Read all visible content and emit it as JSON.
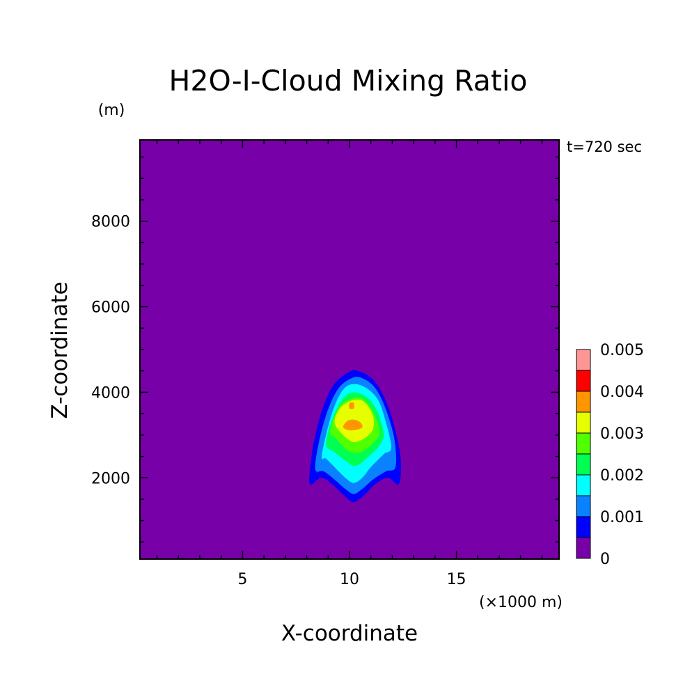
{
  "chart_data": {
    "type": "heatmap",
    "title": "H2O-I-Cloud Mixing Ratio",
    "xlabel": "X-coordinate",
    "ylabel": "Z-coordinate",
    "x_unit": "(×1000 m)",
    "y_unit": "(m)",
    "time_label": "t=720 sec",
    "xlim": [
      0.2,
      19.8
    ],
    "ylim": [
      100,
      9900
    ],
    "x_ticks": [
      5,
      10,
      15
    ],
    "y_ticks": [
      2000,
      4000,
      6000,
      8000
    ],
    "colorbar": {
      "levels": [
        0,
        0.0005,
        0.001,
        0.0015,
        0.002,
        0.0025,
        0.003,
        0.0035,
        0.004,
        0.0045,
        0.005
      ],
      "colors": [
        "#7800a8",
        "#0000ff",
        "#0a82ff",
        "#00ffff",
        "#00ff50",
        "#50ff00",
        "#e6ff00",
        "#ff9600",
        "#ff0000",
        "#ff9696"
      ],
      "tick_labels": [
        "0",
        "0.001",
        "0.002",
        "0.003",
        "0.004",
        "0.005"
      ],
      "tick_values": [
        0,
        0.001,
        0.002,
        0.003,
        0.004,
        0.005
      ]
    },
    "contours": [
      {
        "level": 0.0005,
        "color": "#0000ff",
        "points": [
          [
            8.15,
            1850
          ],
          [
            8.2,
            2400
          ],
          [
            8.4,
            3000
          ],
          [
            8.8,
            3700
          ],
          [
            9.3,
            4200
          ],
          [
            10.0,
            4480
          ],
          [
            10.4,
            4500
          ],
          [
            11.1,
            4300
          ],
          [
            11.7,
            3800
          ],
          [
            12.15,
            3100
          ],
          [
            12.4,
            2400
          ],
          [
            12.3,
            1850
          ],
          [
            11.8,
            2000
          ],
          [
            11.2,
            1850
          ],
          [
            10.7,
            1600
          ],
          [
            10.2,
            1430
          ],
          [
            9.8,
            1560
          ],
          [
            9.3,
            1800
          ],
          [
            8.7,
            2000
          ]
        ]
      },
      {
        "level": 0.001,
        "color": "#0a82ff",
        "points": [
          [
            8.4,
            2200
          ],
          [
            8.6,
            2900
          ],
          [
            9.0,
            3600
          ],
          [
            9.5,
            4100
          ],
          [
            10.1,
            4330
          ],
          [
            10.6,
            4330
          ],
          [
            11.2,
            4100
          ],
          [
            11.7,
            3600
          ],
          [
            12.1,
            2900
          ],
          [
            12.15,
            2250
          ],
          [
            11.7,
            2150
          ],
          [
            11.1,
            1960
          ],
          [
            10.6,
            1740
          ],
          [
            10.2,
            1620
          ],
          [
            9.8,
            1740
          ],
          [
            9.3,
            1960
          ],
          [
            8.8,
            2150
          ]
        ]
      },
      {
        "level": 0.0015,
        "color": "#00ffff",
        "points": [
          [
            8.7,
            2500
          ],
          [
            9.0,
            3200
          ],
          [
            9.4,
            3800
          ],
          [
            9.9,
            4150
          ],
          [
            10.6,
            4150
          ],
          [
            11.3,
            3850
          ],
          [
            11.7,
            3300
          ],
          [
            11.95,
            2700
          ],
          [
            11.6,
            2550
          ],
          [
            11.0,
            2250
          ],
          [
            10.6,
            2000
          ],
          [
            10.2,
            1880
          ],
          [
            9.8,
            2000
          ],
          [
            9.3,
            2250
          ],
          [
            8.9,
            2450
          ]
        ]
      },
      {
        "level": 0.002,
        "color": "#00ff50",
        "points": [
          [
            8.9,
            2800
          ],
          [
            9.3,
            3500
          ],
          [
            9.9,
            3950
          ],
          [
            10.6,
            3950
          ],
          [
            11.2,
            3650
          ],
          [
            11.6,
            3050
          ],
          [
            11.4,
            2750
          ],
          [
            10.9,
            2500
          ],
          [
            10.5,
            2330
          ],
          [
            10.2,
            2280
          ],
          [
            9.8,
            2400
          ],
          [
            9.3,
            2600
          ]
        ]
      },
      {
        "level": 0.0025,
        "color": "#50ff00",
        "points": [
          [
            9.1,
            3100
          ],
          [
            9.5,
            3650
          ],
          [
            10.1,
            3850
          ],
          [
            10.6,
            3850
          ],
          [
            11.1,
            3550
          ],
          [
            11.4,
            3050
          ],
          [
            11.0,
            2760
          ],
          [
            10.6,
            2620
          ],
          [
            10.2,
            2580
          ],
          [
            9.8,
            2680
          ],
          [
            9.4,
            2900
          ]
        ]
      },
      {
        "level": 0.003,
        "color": "#e6ff00",
        "points": [
          [
            9.3,
            3300
          ],
          [
            9.6,
            3650
          ],
          [
            10.2,
            3820
          ],
          [
            10.7,
            3770
          ],
          [
            11.1,
            3450
          ],
          [
            11.1,
            3150
          ],
          [
            10.8,
            2960
          ],
          [
            10.4,
            2850
          ],
          [
            10.1,
            2850
          ],
          [
            9.7,
            3000
          ]
        ]
      },
      {
        "level": 0.0035,
        "color": "#ff9600",
        "points": [
          [
            9.7,
            3200
          ],
          [
            9.9,
            3330
          ],
          [
            10.2,
            3360
          ],
          [
            10.5,
            3300
          ],
          [
            10.6,
            3180
          ],
          [
            10.3,
            3120
          ],
          [
            10.0,
            3110
          ],
          [
            9.8,
            3140
          ]
        ]
      },
      {
        "level": 0.0035,
        "color": "#ff9600",
        "points": [
          [
            10.0,
            3620
          ],
          [
            10.0,
            3750
          ],
          [
            10.2,
            3750
          ],
          [
            10.2,
            3620
          ]
        ]
      }
    ]
  }
}
